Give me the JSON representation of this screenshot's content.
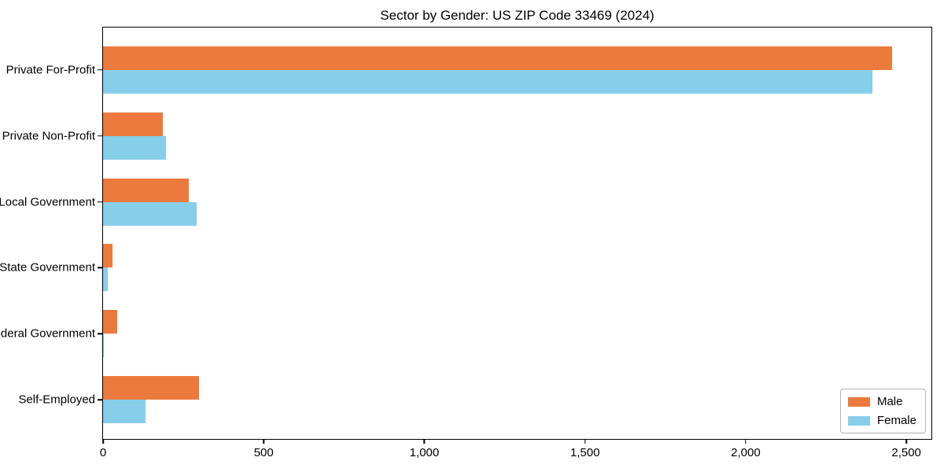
{
  "title": "Sector by Gender: US ZIP Code 33469 (2024)",
  "chart_data": {
    "type": "bar",
    "orientation": "horizontal",
    "title": "Sector by Gender: US ZIP Code 33469 (2024)",
    "xlabel": "",
    "ylabel": "",
    "categories": [
      "Private For-Profit",
      "Private Non-Profit",
      "Local Government",
      "State Government",
      "Federal Government",
      "Self-Employed"
    ],
    "series": [
      {
        "name": "Male",
        "color": "#EC7A3C",
        "values": [
          2455,
          186,
          267,
          29,
          45,
          298
        ]
      },
      {
        "name": "Female",
        "color": "#87CEEB",
        "values": [
          2395,
          196,
          291,
          15,
          2,
          131
        ]
      }
    ],
    "xlim": [
      0,
      2578
    ],
    "xticks": [
      0,
      500,
      1000,
      1500,
      2000,
      2500
    ],
    "xtick_labels": [
      "0",
      "500",
      "1,000",
      "1,500",
      "2,000",
      "2,500"
    ],
    "grid": false,
    "legend": {
      "position": "lower right",
      "entries": [
        "Male",
        "Female"
      ]
    }
  },
  "colors": {
    "male": "#EC7A3C",
    "female": "#87CEEB",
    "spine": "#000000",
    "legend_border": "#b3b3b3",
    "background": "#ffffff"
  }
}
